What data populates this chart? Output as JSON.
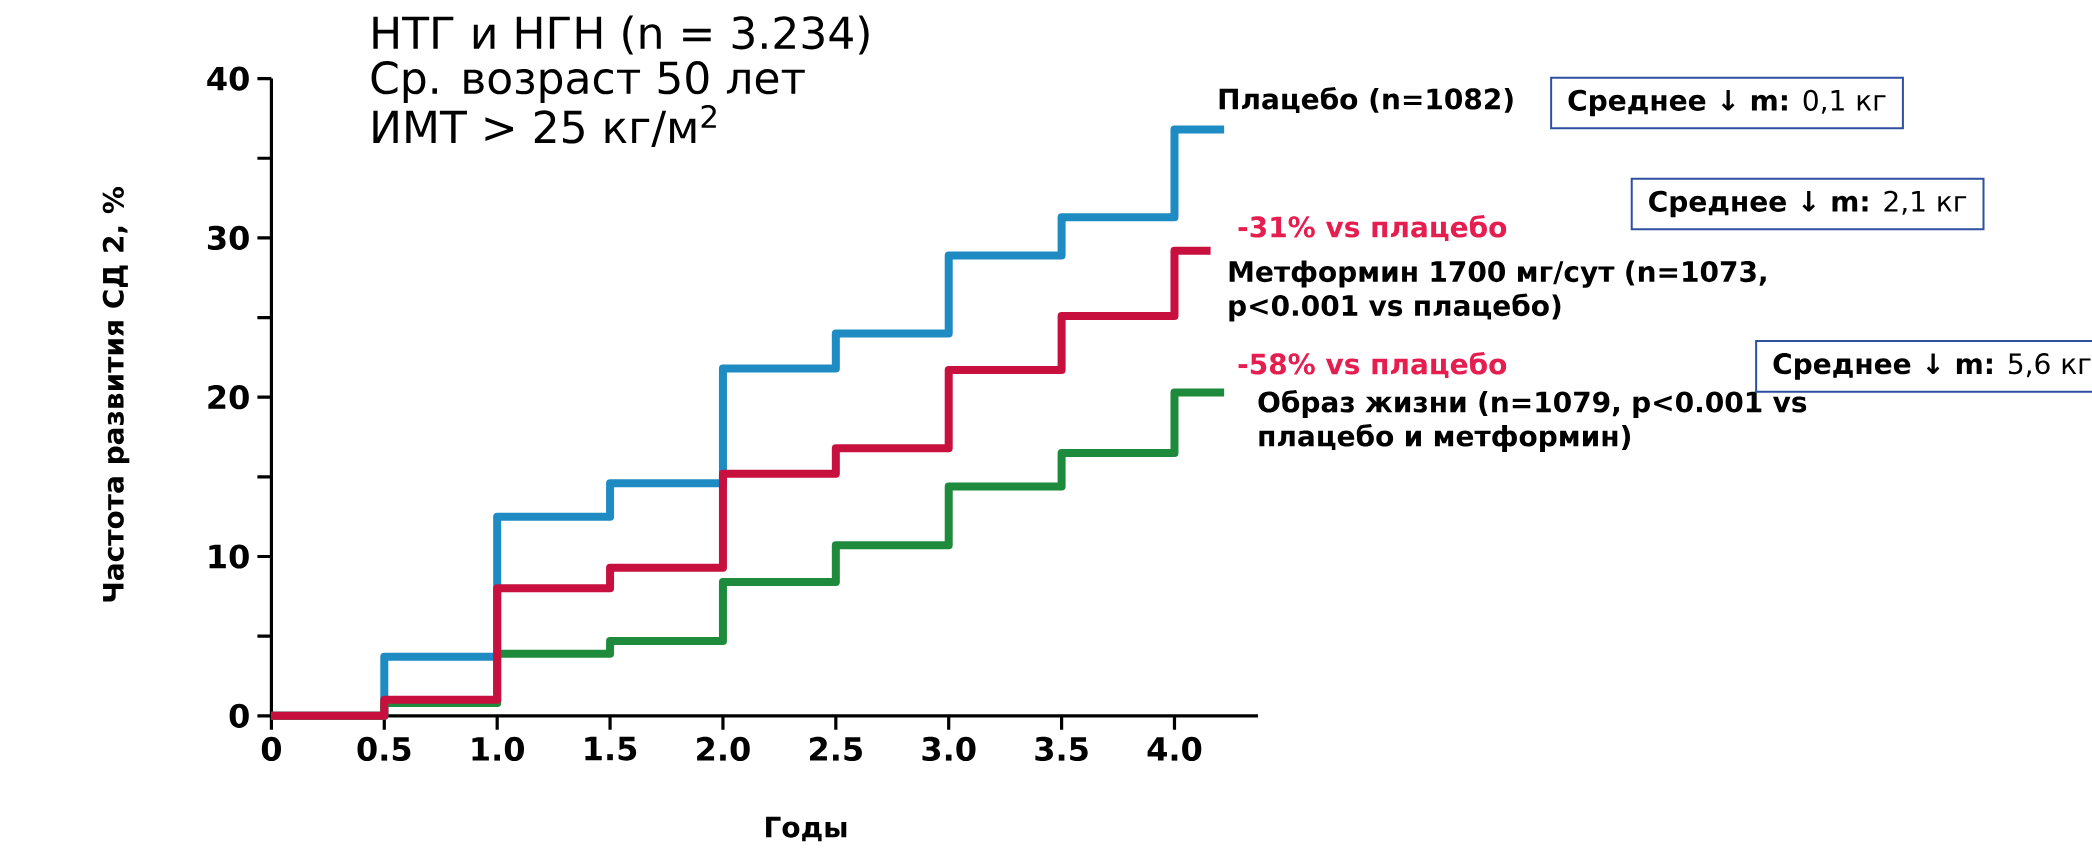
{
  "chart_data": {
    "type": "step",
    "title": "НТГ и НГН (n = 3.234)",
    "xlabel": "Годы",
    "ylabel": "Частота развития СД 2, %",
    "xlim": [
      0,
      4.37
    ],
    "ylim": [
      0,
      40
    ],
    "xticks": [
      0,
      {
        "value": 0.5,
        "label": "0.5"
      },
      {
        "value": 1,
        "label": "1.0"
      },
      {
        "value": 1.5,
        "label": "1.5"
      },
      {
        "value": 2,
        "label": "2.0"
      },
      {
        "value": 2.5,
        "label": "2.5"
      },
      {
        "value": 3,
        "label": "3.0"
      },
      {
        "value": 3.5,
        "label": "3.5"
      },
      {
        "value": 4,
        "label": "4.0"
      }
    ],
    "yticks": [
      0,
      {
        "value": 5,
        "label": null
      },
      10,
      {
        "value": 15,
        "label": null
      },
      20,
      {
        "value": 25,
        "label": null
      },
      30,
      {
        "value": 35,
        "label": null
      },
      40
    ],
    "series": [
      {
        "name": "Плацебо (n=1082)",
        "color": "#1e8bc3",
        "x": [
          0,
          0.5,
          1,
          1.5,
          2,
          2.5,
          3,
          3.5,
          4,
          4.22
        ],
        "values": [
          0,
          3.7,
          12.5,
          14.6,
          21.8,
          24.0,
          28.9,
          31.3,
          36.8,
          36.8
        ]
      },
      {
        "name": "Образ жизни (n=1079, p<0.001 vs плацебо и метформин)",
        "color": "#1e8a3c",
        "x": [
          0,
          0.5,
          1,
          1.5,
          2,
          2.5,
          3,
          3.5,
          4,
          4.22
        ],
        "values": [
          0,
          0.8,
          3.9,
          4.7,
          8.4,
          10.7,
          14.4,
          16.5,
          20.3,
          20.3
        ]
      },
      {
        "name": "Метформин 1700 мг/сут (n=1073, p<0.001 vs плацебо)",
        "color": "#c8103e",
        "x": [
          0,
          0.5,
          1,
          1.5,
          2,
          2.5,
          3,
          3.5,
          4,
          4.16
        ],
        "values": [
          0,
          1.0,
          8.0,
          9.3,
          15.2,
          16.8,
          21.7,
          25.1,
          29.2,
          29.2
        ]
      }
    ],
    "annotations": [
      "Ср. возраст  50 лет",
      "ИМТ > 25 кг/м$^{2}$",
      "-31% vs плацебо",
      "-58% vs плацебо",
      "**Среднее ↓ m:** 0,1 кг",
      "**Среднее ↓ m:** 2,1 кг",
      "**Среднее ↓ m:** 5,6 кг"
    ]
  }
}
